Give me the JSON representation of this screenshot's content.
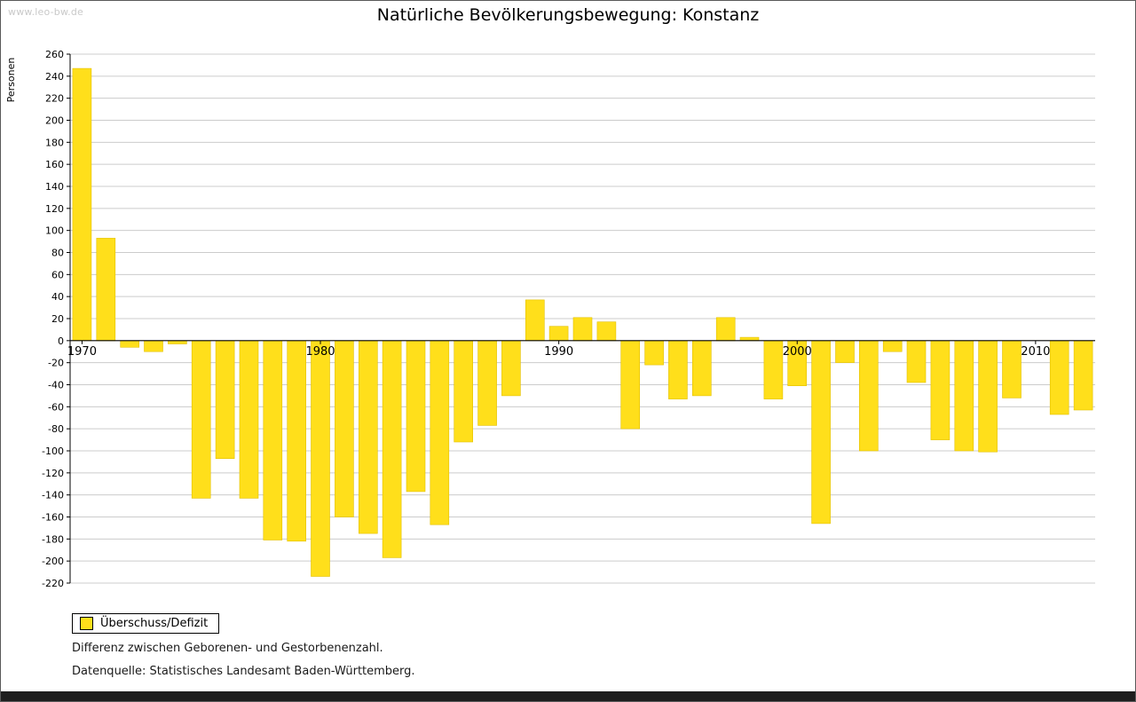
{
  "watermark": "www.leo-bw.de",
  "title": "Natürliche Bevölkerungsbewegung: Konstanz",
  "legend": {
    "label": "Überschuss/Defizit"
  },
  "notes": [
    "Differenz zwischen Geborenen- und Gestorbenenzahl.",
    "Datenquelle: Statistisches Landesamt Baden-Württemberg."
  ],
  "chart_data": {
    "type": "bar",
    "title": "Natürliche Bevölkerungsbewegung: Konstanz",
    "xlabel": "",
    "ylabel": "Personen",
    "ylim": [
      -220,
      260
    ],
    "ytick_step": 20,
    "grid": true,
    "legend_position": "bottom-left",
    "series_name": "Überschuss/Defizit",
    "bar_color": "#ffdf1b",
    "bar_stroke": "#e3c000",
    "grid_color": "#cccccc",
    "axis_color": "#000000",
    "x_labeled_ticks": [
      1970,
      1980,
      1990,
      2000,
      2010
    ],
    "years": [
      1970,
      1971,
      1972,
      1973,
      1974,
      1975,
      1976,
      1977,
      1978,
      1979,
      1980,
      1981,
      1982,
      1983,
      1984,
      1985,
      1986,
      1987,
      1988,
      1989,
      1990,
      1991,
      1992,
      1993,
      1994,
      1995,
      1996,
      1997,
      1998,
      1999,
      2000,
      2001,
      2002,
      2003,
      2004,
      2005,
      2006,
      2007,
      2008,
      2009,
      2010,
      2011,
      2012
    ],
    "values": [
      247,
      93,
      -6,
      -10,
      -3,
      -143,
      -107,
      -143,
      -181,
      -182,
      -214,
      -160,
      -175,
      -197,
      -137,
      -167,
      -92,
      -77,
      -50,
      37,
      13,
      21,
      17,
      -80,
      -22,
      -53,
      -50,
      21,
      3,
      -53,
      -41,
      -166,
      -20,
      -100,
      -10,
      -38,
      -90,
      -100,
      -101,
      -52,
      0,
      -67,
      -63
    ]
  }
}
